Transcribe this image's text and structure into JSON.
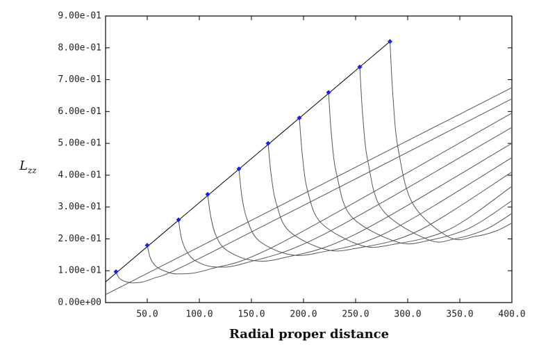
{
  "chart_data": {
    "type": "line",
    "xlabel": "Radial proper distance",
    "ylabel": {
      "text": "L",
      "subscript": "zz"
    },
    "xlim": [
      10,
      400
    ],
    "ylim": [
      0,
      0.9
    ],
    "xticks": [
      {
        "value": 50,
        "label": "50.0"
      },
      {
        "value": 100,
        "label": "100.0"
      },
      {
        "value": 150,
        "label": "150.0"
      },
      {
        "value": 200,
        "label": "200.0"
      },
      {
        "value": 250,
        "label": "250.0"
      },
      {
        "value": 300,
        "label": "300.0"
      },
      {
        "value": 350,
        "label": "350.0"
      },
      {
        "value": 400,
        "label": "400.0"
      }
    ],
    "yticks": [
      {
        "value": 0,
        "label": "0.00e+00"
      },
      {
        "value": 0.1,
        "label": "1.00e-01"
      },
      {
        "value": 0.2,
        "label": "2.00e-01"
      },
      {
        "value": 0.3,
        "label": "3.00e-01"
      },
      {
        "value": 0.4,
        "label": "4.00e-01"
      },
      {
        "value": 0.5,
        "label": "5.00e-01"
      },
      {
        "value": 0.6,
        "label": "6.00e-01"
      },
      {
        "value": 0.7,
        "label": "7.00e-01"
      },
      {
        "value": 0.8,
        "label": "8.00e-01"
      },
      {
        "value": 0.9,
        "label": "9.00e-01"
      }
    ],
    "series": [
      {
        "type": "line",
        "color": "#000000",
        "x": [
          10,
          283
        ],
        "values": [
          0.065,
          0.82
        ]
      },
      {
        "type": "line",
        "color": "#555555",
        "x": [
          10,
          400
        ],
        "values": [
          0.025,
          0.675
        ]
      },
      {
        "type": "curve",
        "color": "#555555",
        "x": [
          20,
          22,
          25,
          30,
          38,
          55,
          110,
          400
        ],
        "values": [
          0.097,
          0.082,
          0.072,
          0.065,
          0.062,
          0.075,
          0.155,
          0.64
        ]
      },
      {
        "type": "curve",
        "color": "#555555",
        "x": [
          50,
          53,
          58,
          66,
          80,
          110,
          180,
          400
        ],
        "values": [
          0.18,
          0.14,
          0.115,
          0.1,
          0.09,
          0.105,
          0.19,
          0.595
        ]
      },
      {
        "type": "curve",
        "color": "#555555",
        "x": [
          80,
          83,
          88,
          97,
          115,
          145,
          220,
          400
        ],
        "values": [
          0.26,
          0.2,
          0.16,
          0.13,
          0.112,
          0.125,
          0.215,
          0.55
        ]
      },
      {
        "type": "curve",
        "color": "#555555",
        "x": [
          108,
          111,
          116,
          126,
          150,
          180,
          250,
          400
        ],
        "values": [
          0.34,
          0.27,
          0.21,
          0.165,
          0.133,
          0.14,
          0.215,
          0.5
        ]
      },
      {
        "type": "curve",
        "color": "#555555",
        "x": [
          138,
          141,
          146,
          157,
          185,
          215,
          280,
          400
        ],
        "values": [
          0.42,
          0.33,
          0.26,
          0.195,
          0.152,
          0.157,
          0.22,
          0.455
        ]
      },
      {
        "type": "curve",
        "color": "#555555",
        "x": [
          166,
          169,
          174,
          186,
          220,
          250,
          310,
          400
        ],
        "values": [
          0.5,
          0.4,
          0.31,
          0.225,
          0.168,
          0.17,
          0.225,
          0.41
        ]
      },
      {
        "type": "curve",
        "color": "#555555",
        "x": [
          196,
          199,
          204,
          217,
          255,
          285,
          340,
          400
        ],
        "values": [
          0.58,
          0.46,
          0.35,
          0.25,
          0.18,
          0.182,
          0.23,
          0.365
        ]
      },
      {
        "type": "curve",
        "color": "#555555",
        "x": [
          224,
          227,
          232,
          246,
          290,
          320,
          360,
          400
        ],
        "values": [
          0.66,
          0.52,
          0.4,
          0.27,
          0.19,
          0.195,
          0.235,
          0.32
        ]
      },
      {
        "type": "curve",
        "color": "#555555",
        "x": [
          254,
          257,
          262,
          276,
          320,
          345,
          375,
          400
        ],
        "values": [
          0.74,
          0.58,
          0.44,
          0.29,
          0.197,
          0.2,
          0.23,
          0.28
        ]
      },
      {
        "type": "curve",
        "color": "#555555",
        "x": [
          283,
          286,
          291,
          305,
          340,
          365,
          385,
          400
        ],
        "values": [
          0.82,
          0.64,
          0.48,
          0.31,
          0.205,
          0.208,
          0.225,
          0.25
        ]
      },
      {
        "type": "scatter",
        "color": "#1a1aff",
        "x": [
          20,
          50,
          80,
          108,
          138,
          166,
          196,
          224,
          254,
          283
        ],
        "values": [
          0.097,
          0.18,
          0.26,
          0.34,
          0.42,
          0.5,
          0.58,
          0.66,
          0.74,
          0.82
        ]
      }
    ]
  }
}
